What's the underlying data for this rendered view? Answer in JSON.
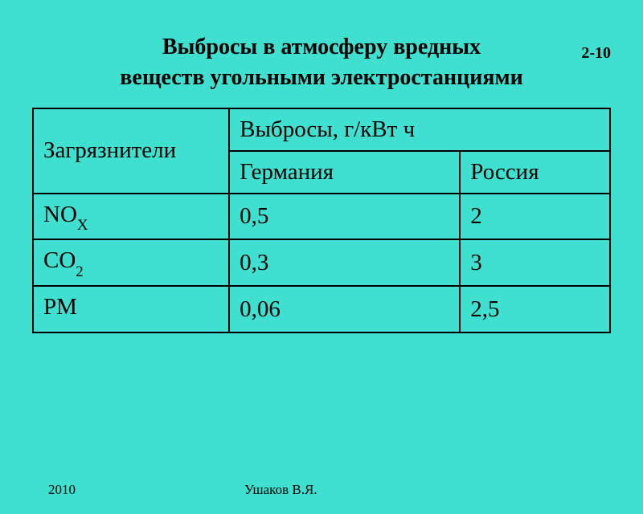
{
  "page_number": "2-10",
  "title_line1": "Выбросы в атмосферу вредных",
  "title_line2": "веществ угольными электростанциями",
  "table": {
    "type": "table",
    "background_color": "#40e0d0",
    "border_color": "#000000",
    "font_size_pt": 22,
    "header": {
      "col_pollutants": "Загрязнители",
      "col_emissions": "Выбросы, г/кВт ч",
      "col_germany": "Германия",
      "col_russia": "Россия"
    },
    "rows": [
      {
        "pollutant_base": "NO",
        "pollutant_sub": "X",
        "germany": "0,5",
        "russia": "2"
      },
      {
        "pollutant_base": "CO",
        "pollutant_sub": "2",
        "germany": "0,3",
        "russia": "3"
      },
      {
        "pollutant_base": "PM",
        "pollutant_sub": "",
        "germany": "0,06",
        "russia": "2,5"
      }
    ],
    "column_widths": [
      "34%",
      "40%",
      "26%"
    ]
  },
  "footer": {
    "year": "2010",
    "author": "Ушаков В.Я."
  },
  "styling": {
    "background_color": "#40e0d0",
    "text_color": "#000000",
    "title_font_weight": "bold",
    "title_font_size_pt": 22,
    "font_family": "Times New Roman"
  }
}
